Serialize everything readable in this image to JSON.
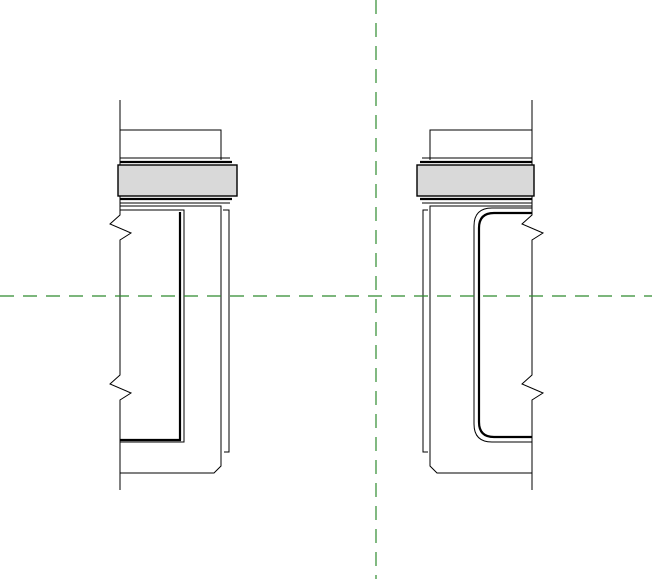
{
  "drawing": {
    "background": "#ffffff",
    "line_color": "#000000",
    "band_fill": "#d9d9d9",
    "reference_line_color": "#2e8b2e"
  },
  "elements": {
    "reference_planes": [
      "horizontal-reference-plane",
      "vertical-reference-plane"
    ],
    "frame_sections": [
      "left-frame-section",
      "right-frame-section"
    ]
  }
}
